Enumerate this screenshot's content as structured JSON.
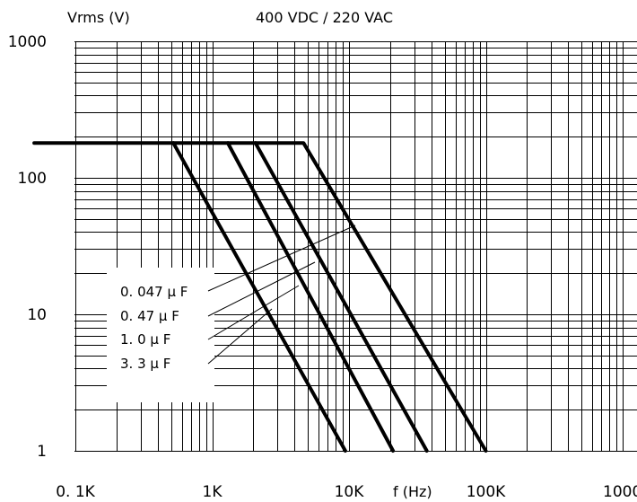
{
  "chart_data": {
    "type": "line",
    "title": "400 VDC / 220 VAC",
    "ylabel": "Vrms (V)",
    "xlabel": "f (Hz)",
    "x_scale": "log",
    "y_scale": "log",
    "xlim": [
      50,
      1000000
    ],
    "ylim": [
      1,
      1000
    ],
    "grid": true,
    "legend_position": "lower-left",
    "x_ticks": [
      {
        "value": 100,
        "label": "0. 1K"
      },
      {
        "value": 1000,
        "label": "1K"
      },
      {
        "value": 10000,
        "label": "10K"
      },
      {
        "value": 100000,
        "label": "100K"
      },
      {
        "value": 1000000,
        "label": "1000K"
      }
    ],
    "y_ticks": [
      {
        "value": 1,
        "label": "1"
      },
      {
        "value": 10,
        "label": "10"
      },
      {
        "value": 100,
        "label": "100"
      },
      {
        "value": 1000,
        "label": "1000"
      }
    ],
    "series": [
      {
        "name": "0. 047 μ F",
        "points": [
          [
            50,
            180
          ],
          [
            4650,
            180
          ],
          [
            100000,
            1
          ]
        ]
      },
      {
        "name": "0. 47  μ F",
        "points": [
          [
            50,
            180
          ],
          [
            2070,
            180
          ],
          [
            37000,
            1
          ]
        ]
      },
      {
        "name": "1. 0   μ F",
        "points": [
          [
            50,
            180
          ],
          [
            1300,
            180
          ],
          [
            21000,
            1
          ]
        ]
      },
      {
        "name": "3. 3   μ F",
        "points": [
          [
            50,
            180
          ],
          [
            520,
            180
          ],
          [
            9400,
            1
          ]
        ]
      }
    ]
  }
}
